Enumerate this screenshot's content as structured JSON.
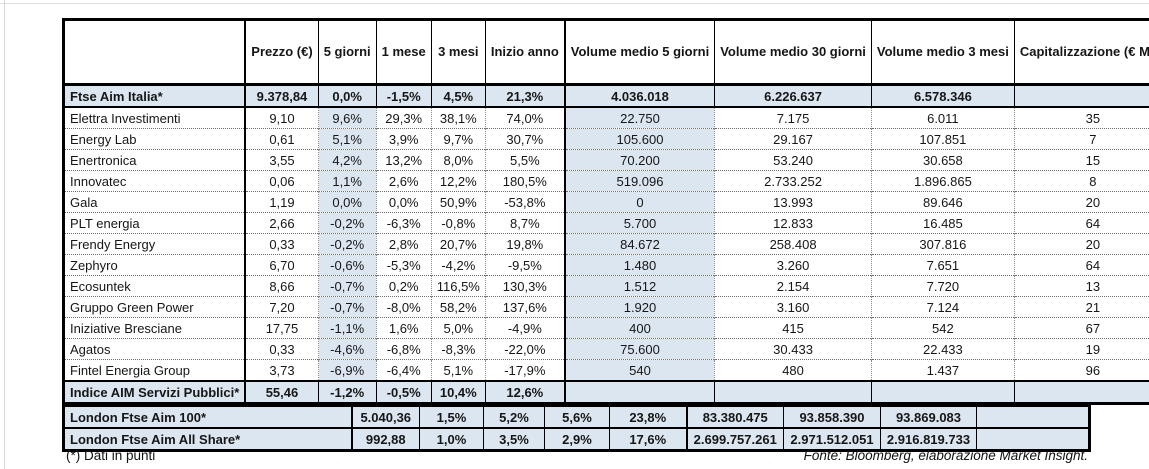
{
  "table": {
    "columns": [
      "",
      "Prezzo\n(€)",
      "5 giorni",
      "1 mese",
      "3 mesi",
      "Inizio anno",
      "Volume medio\n5 giorni",
      "Volume medio\n30 giorni",
      "Volume medio\n3 mesi",
      "Capitalizzazione\n(€ Mln)"
    ],
    "rows": [
      {
        "type": "index",
        "name": "Ftse Aim Italia*",
        "cells": [
          "9.378,84",
          "0,0%",
          "-1,5%",
          "4,5%",
          "21,3%",
          "4.036.018",
          "6.226.637",
          "6.578.346",
          ""
        ]
      },
      {
        "type": "stock",
        "name": "Elettra Investimenti",
        "cells": [
          "9,10",
          "9,6%",
          "29,3%",
          "38,1%",
          "74,0%",
          "22.750",
          "7.175",
          "6.011",
          "35"
        ]
      },
      {
        "type": "stock",
        "name": "Energy Lab",
        "cells": [
          "0,61",
          "5,1%",
          "3,9%",
          "9,7%",
          "30,7%",
          "105.600",
          "29.167",
          "107.851",
          "7"
        ]
      },
      {
        "type": "stock",
        "name": "Enertronica",
        "cells": [
          "3,55",
          "4,2%",
          "13,2%",
          "8,0%",
          "5,5%",
          "70.200",
          "53.240",
          "30.658",
          "15"
        ]
      },
      {
        "type": "stock",
        "name": "Innovatec",
        "cells": [
          "0,06",
          "1,1%",
          "2,6%",
          "12,2%",
          "180,5%",
          "519.096",
          "2.733.252",
          "1.896.865",
          "8"
        ]
      },
      {
        "type": "stock",
        "name": "Gala",
        "cells": [
          "1,19",
          "0,0%",
          "0,0%",
          "50,9%",
          "-53,8%",
          "0",
          "13.993",
          "89.646",
          "20"
        ]
      },
      {
        "type": "stock",
        "name": "PLT energia",
        "cells": [
          "2,66",
          "-0,2%",
          "-6,3%",
          "-0,8%",
          "8,7%",
          "5.700",
          "12.833",
          "16.485",
          "64"
        ]
      },
      {
        "type": "stock",
        "name": "Frendy Energy",
        "cells": [
          "0,33",
          "-0,2%",
          "2,8%",
          "20,7%",
          "19,8%",
          "84.672",
          "258.408",
          "307.816",
          "20"
        ]
      },
      {
        "type": "stock",
        "name": "Zephyro",
        "cells": [
          "6,70",
          "-0,6%",
          "-5,3%",
          "-4,2%",
          "-9,5%",
          "1.480",
          "3.260",
          "7.651",
          "64"
        ]
      },
      {
        "type": "stock",
        "name": "Ecosuntek",
        "cells": [
          "8,66",
          "-0,7%",
          "0,2%",
          "116,5%",
          "130,3%",
          "1.512",
          "2.154",
          "7.720",
          "13"
        ]
      },
      {
        "type": "stock",
        "name": "Gruppo Green Power",
        "cells": [
          "7,20",
          "-0,7%",
          "-8,0%",
          "58,2%",
          "137,6%",
          "1.920",
          "3.160",
          "7.124",
          "21"
        ]
      },
      {
        "type": "stock",
        "name": "Iniziative Bresciane",
        "cells": [
          "17,75",
          "-1,1%",
          "1,6%",
          "5,0%",
          "-4,9%",
          "400",
          "415",
          "542",
          "67"
        ]
      },
      {
        "type": "stock",
        "name": "Agatos",
        "cells": [
          "0,33",
          "-4,6%",
          "-6,8%",
          "-8,3%",
          "-22,0%",
          "75.600",
          "30.433",
          "22.433",
          "19"
        ]
      },
      {
        "type": "stock",
        "name": "Fintel Energia Group",
        "cells": [
          "3,73",
          "-6,9%",
          "-6,4%",
          "5,1%",
          "-17,9%",
          "540",
          "480",
          "1.437",
          "96"
        ]
      },
      {
        "type": "index",
        "name": "Indice AIM Servizi Pubblici*",
        "cells": [
          "55,46",
          "-1,2%",
          "-0,5%",
          "10,4%",
          "12,6%",
          "",
          "",
          "",
          ""
        ]
      }
    ]
  },
  "london": {
    "rows": [
      {
        "type": "index",
        "name": "London Ftse Aim 100*",
        "cells": [
          "5.040,36",
          "1,5%",
          "5,2%",
          "5,6%",
          "23,8%",
          "83.380.475",
          "93.858.390",
          "93.869.083",
          ""
        ]
      },
      {
        "type": "index",
        "name": "London Ftse Aim All Share*",
        "cells": [
          "992,88",
          "1,0%",
          "3,5%",
          "2,9%",
          "17,6%",
          "2.699.757.261",
          "2.971.512.051",
          "2.916.819.733",
          ""
        ]
      }
    ]
  },
  "footer": {
    "footnote": "(*) Dati in punti",
    "source": "Fonte: Bloomberg, elaborazione Market Insight."
  },
  "colors": {
    "highlight_blue": "#dce6f1",
    "border_black": "#000000"
  }
}
